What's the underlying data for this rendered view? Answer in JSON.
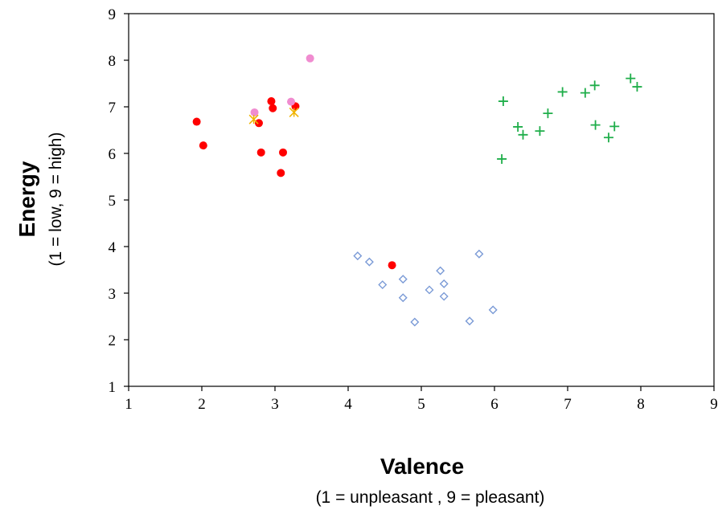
{
  "chart_data": {
    "type": "scatter",
    "xlabel": "Valence",
    "xlabel_sub": "(1 = unpleasant , 9 = pleasant)",
    "ylabel": "Energy",
    "ylabel_sub": "(1 = low, 9 = high)",
    "xlim": [
      1,
      9
    ],
    "ylim": [
      1,
      9
    ],
    "xticks": [
      "1",
      "2",
      "3",
      "4",
      "5",
      "6",
      "7",
      "8",
      "9"
    ],
    "yticks": [
      "1",
      "2",
      "3",
      "4",
      "5",
      "6",
      "7",
      "8",
      "9"
    ],
    "grid": false,
    "legend": "none",
    "series": [
      {
        "marker": "circle",
        "color": "#ff0000",
        "points": [
          [
            1.93,
            6.68
          ],
          [
            2.02,
            6.17
          ],
          [
            2.78,
            6.65
          ],
          [
            2.81,
            6.02
          ],
          [
            2.95,
            7.12
          ],
          [
            2.97,
            6.97
          ],
          [
            3.08,
            5.58
          ],
          [
            3.11,
            6.02
          ],
          [
            3.28,
            7.01
          ],
          [
            4.6,
            3.6
          ]
        ]
      },
      {
        "marker": "circle",
        "color": "#f08cd0",
        "points": [
          [
            2.72,
            6.88
          ],
          [
            3.22,
            7.11
          ],
          [
            3.48,
            8.04
          ]
        ]
      },
      {
        "marker": "star",
        "color": "#f0b400",
        "points": [
          [
            2.71,
            6.73
          ],
          [
            3.26,
            6.88
          ]
        ]
      },
      {
        "marker": "diamond",
        "color": "#7a9ad6",
        "points": [
          [
            4.13,
            3.8
          ],
          [
            4.29,
            3.67
          ],
          [
            4.47,
            3.18
          ],
          [
            4.75,
            3.3
          ],
          [
            4.75,
            2.9
          ],
          [
            4.91,
            2.38
          ],
          [
            5.11,
            3.07
          ],
          [
            5.26,
            3.48
          ],
          [
            5.31,
            3.2
          ],
          [
            5.31,
            2.93
          ],
          [
            5.66,
            2.4
          ],
          [
            5.79,
            3.84
          ],
          [
            5.98,
            2.64
          ]
        ]
      },
      {
        "marker": "plus",
        "color": "#1fae4a",
        "points": [
          [
            6.1,
            5.88
          ],
          [
            6.12,
            7.12
          ],
          [
            6.32,
            6.57
          ],
          [
            6.39,
            6.4
          ],
          [
            6.62,
            6.48
          ],
          [
            6.73,
            6.86
          ],
          [
            6.93,
            7.32
          ],
          [
            7.24,
            7.3
          ],
          [
            7.37,
            7.46
          ],
          [
            7.38,
            6.61
          ],
          [
            7.56,
            6.34
          ],
          [
            7.64,
            6.58
          ],
          [
            7.86,
            7.61
          ],
          [
            7.95,
            7.43
          ]
        ]
      }
    ]
  }
}
